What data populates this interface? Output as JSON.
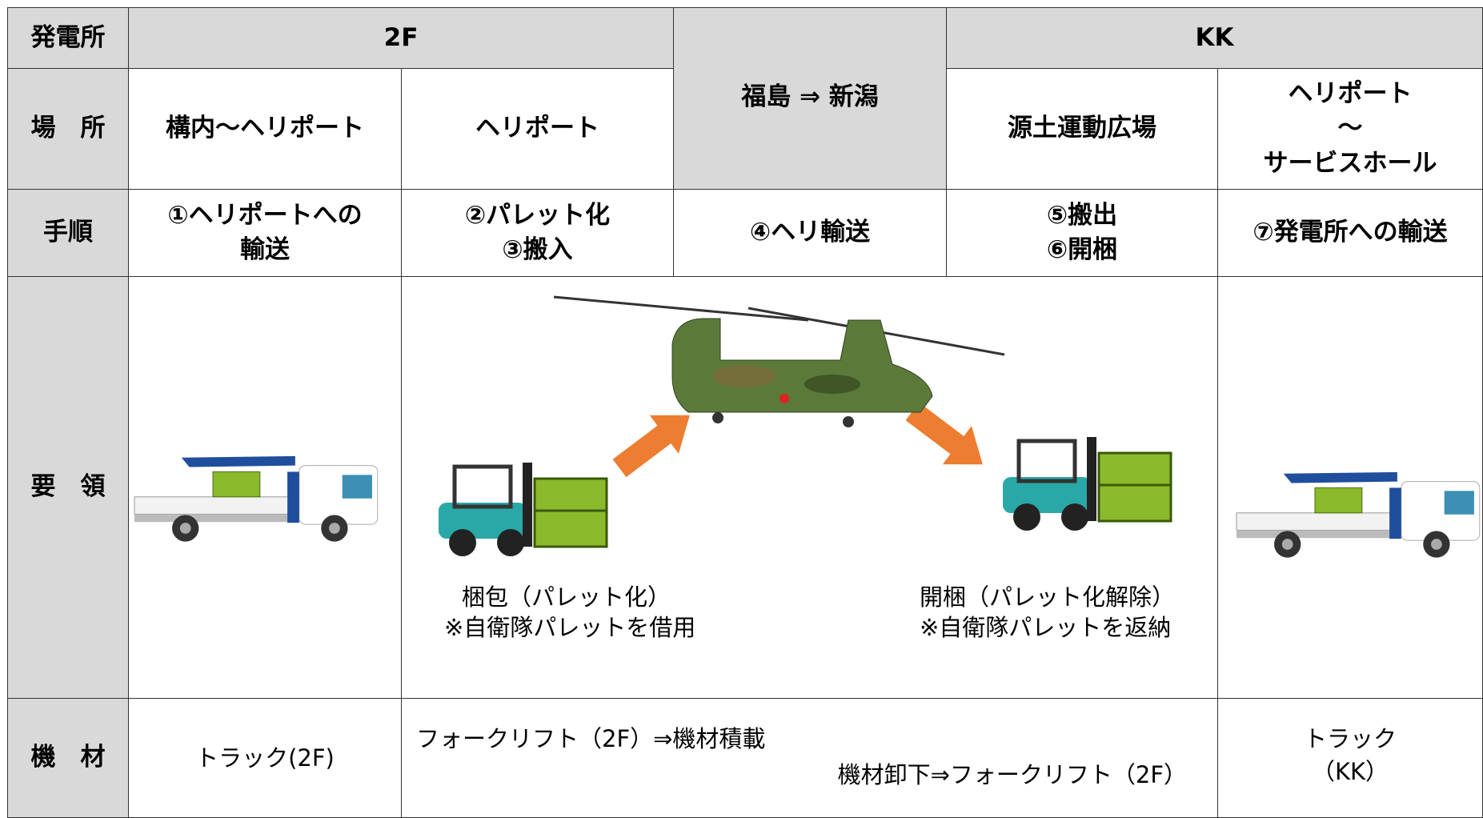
{
  "table": {
    "row_labels": [
      "発電所",
      "場　所",
      "手順",
      "要　領",
      "機　材"
    ],
    "plants": [
      "2F",
      "KK"
    ],
    "route": "福島 ⇒ 新潟",
    "places": [
      "構内～ヘリポート",
      "ヘリポート",
      "源土運動広場",
      "ヘリポート\n～\nサービスホール"
    ],
    "steps": [
      "①ヘリポートへの\n輸送",
      "②パレット化\n③搬入",
      "④ヘリ輸送",
      "⑤搬出\n⑥開梱",
      "⑦発電所への輸送"
    ],
    "notes": [
      "梱包（パレット化）\n※自衛隊パレットを借用",
      "開梱（パレット化解除）\n※自衛隊パレットを返納"
    ],
    "equipment": [
      "トラック(2F)",
      "フォークリフト（2F）⇒機材積載",
      "機材卸下⇒フォークリフト（2F）",
      "トラック\n（KK）"
    ]
  }
}
